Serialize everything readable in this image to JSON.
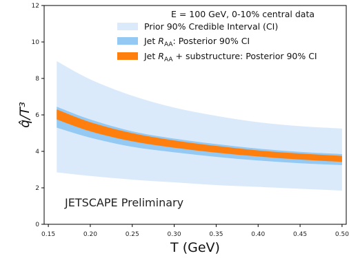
{
  "chart_data": {
    "type": "area",
    "xlabel": "T (GeV)",
    "ylabel": "q̂/T³",
    "xlim": [
      0.145,
      0.505
    ],
    "ylim": [
      0,
      12
    ],
    "xticks": [
      0.15,
      0.2,
      0.25,
      0.3,
      0.35,
      0.4,
      0.45,
      0.5
    ],
    "xtick_labels": [
      "0.15",
      "0.20",
      "0.25",
      "0.30",
      "0.35",
      "0.40",
      "0.45",
      "0.50"
    ],
    "yticks": [
      0,
      2,
      4,
      6,
      8,
      10,
      12
    ],
    "ytick_labels": [
      "0",
      "2",
      "4",
      "6",
      "8",
      "10",
      "12"
    ],
    "grid": false,
    "legend_position": "top-right",
    "legend_title": "E = 100 GeV, 0-10% central data",
    "annotation": "JETSCAPE Preliminary",
    "series": [
      {
        "name": "Prior 90% Credible Interval (CI)",
        "color": "#dbeafa",
        "x": [
          0.16,
          0.2,
          0.25,
          0.3,
          0.35,
          0.4,
          0.45,
          0.5
        ],
        "upper": [
          8.95,
          7.95,
          7.05,
          6.4,
          5.95,
          5.6,
          5.38,
          5.25
        ],
        "lower": [
          2.85,
          2.65,
          2.45,
          2.3,
          2.15,
          2.05,
          1.95,
          1.85
        ]
      },
      {
        "name": "Jet R_AA: Posterior 90% CI",
        "color": "#93c9f2",
        "x": [
          0.16,
          0.2,
          0.25,
          0.3,
          0.35,
          0.4,
          0.45,
          0.5
        ],
        "upper": [
          6.45,
          5.75,
          5.1,
          4.7,
          4.4,
          4.15,
          3.97,
          3.85
        ],
        "lower": [
          5.3,
          4.75,
          4.25,
          3.95,
          3.7,
          3.5,
          3.35,
          3.25
        ]
      },
      {
        "name": "Jet R_AA + substructure: Posterior 90% CI",
        "color": "#ff7f0e",
        "x": [
          0.16,
          0.2,
          0.25,
          0.3,
          0.35,
          0.4,
          0.45,
          0.5
        ],
        "upper": [
          6.3,
          5.6,
          5.0,
          4.6,
          4.3,
          4.05,
          3.88,
          3.75
        ],
        "lower": [
          5.75,
          5.1,
          4.55,
          4.2,
          3.93,
          3.72,
          3.55,
          3.42
        ]
      }
    ],
    "legend_labels": [
      {
        "pre": "Prior 90% Credible Interval (CI)",
        "sub": "",
        "post": ""
      },
      {
        "pre": "Jet ",
        "sym": "R",
        "sub": "AA",
        "post": ": Posterior 90% CI"
      },
      {
        "pre": "Jet ",
        "sym": "R",
        "sub": "AA",
        "post": " + substructure: Posterior 90% CI"
      }
    ]
  }
}
